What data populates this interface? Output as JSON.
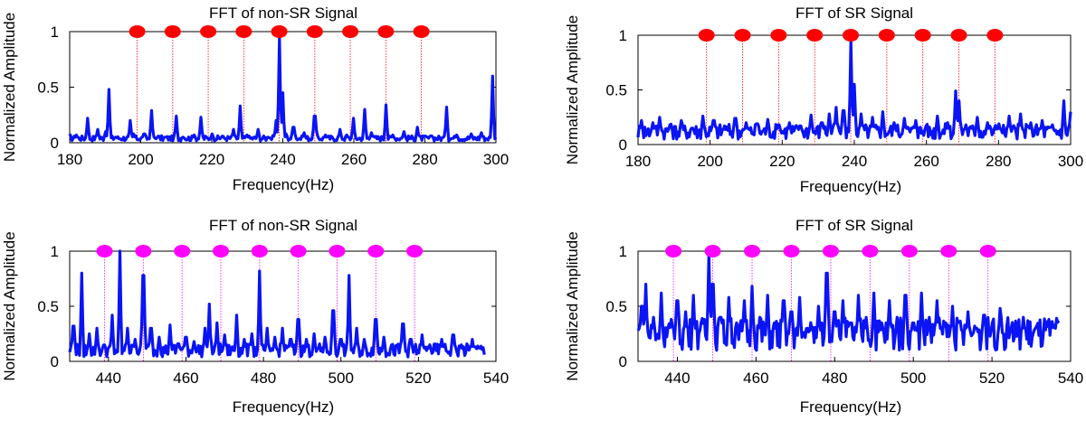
{
  "chart_data": [
    {
      "type": "line",
      "title": "FFT of non-SR Signal",
      "xlabel": "Frequency(Hz)",
      "ylabel": "Normalized Amplitude",
      "xlim": [
        180,
        300
      ],
      "ylim": [
        0,
        1
      ],
      "xticks": [
        180,
        200,
        220,
        240,
        260,
        280,
        300
      ],
      "yticks": [
        0,
        0.5,
        1
      ],
      "line_color": "#0a14f5",
      "marker_color": "#ff0000",
      "markers_x": [
        199,
        209,
        219,
        229,
        239,
        249,
        259,
        269,
        279
      ],
      "baseline": 0.04,
      "peaks": [
        [
          180,
          0.08
        ],
        [
          182,
          0.07
        ],
        [
          185,
          0.22
        ],
        [
          188,
          0.12
        ],
        [
          190,
          0.1
        ],
        [
          191,
          0.48
        ],
        [
          193,
          0.05
        ],
        [
          197,
          0.2
        ],
        [
          198,
          0.08
        ],
        [
          201,
          0.08
        ],
        [
          203,
          0.29
        ],
        [
          205,
          0.06
        ],
        [
          207,
          0.05
        ],
        [
          210,
          0.24
        ],
        [
          212,
          0.05
        ],
        [
          215,
          0.07
        ],
        [
          217,
          0.23
        ],
        [
          220,
          0.08
        ],
        [
          223,
          0.06
        ],
        [
          226,
          0.12
        ],
        [
          228,
          0.33
        ],
        [
          230,
          0.07
        ],
        [
          233,
          0.12
        ],
        [
          236,
          0.05
        ],
        [
          238,
          0.2
        ],
        [
          239,
          0.95
        ],
        [
          240,
          0.45
        ],
        [
          241,
          0.08
        ],
        [
          243,
          0.14
        ],
        [
          246,
          0.09
        ],
        [
          249,
          0.24
        ],
        [
          252,
          0.07
        ],
        [
          256,
          0.12
        ],
        [
          258,
          0.07
        ],
        [
          260,
          0.22
        ],
        [
          263,
          0.3
        ],
        [
          265,
          0.09
        ],
        [
          269,
          0.34
        ],
        [
          271,
          0.07
        ],
        [
          274,
          0.1
        ],
        [
          278,
          0.14
        ],
        [
          282,
          0.06
        ],
        [
          286,
          0.32
        ],
        [
          289,
          0.07
        ],
        [
          293,
          0.08
        ],
        [
          296,
          0.09
        ],
        [
          299,
          0.6
        ]
      ]
    },
    {
      "type": "line",
      "title": "FFT of SR Signal",
      "xlabel": "Frequency(Hz)",
      "ylabel": "Normalized Amplitude",
      "xlim": [
        180,
        300
      ],
      "ylim": [
        0,
        1
      ],
      "xticks": [
        180,
        200,
        220,
        240,
        260,
        280,
        300
      ],
      "yticks": [
        0,
        0.5,
        1
      ],
      "line_color": "#0a14f5",
      "marker_color": "#ff0000",
      "markers_x": [
        199,
        209,
        219,
        229,
        239,
        249,
        259,
        269,
        279
      ],
      "baseline": 0.12,
      "peaks": [
        [
          181,
          0.22
        ],
        [
          184,
          0.2
        ],
        [
          186,
          0.25
        ],
        [
          189,
          0.18
        ],
        [
          192,
          0.22
        ],
        [
          195,
          0.15
        ],
        [
          198,
          0.26
        ],
        [
          201,
          0.22
        ],
        [
          204,
          0.17
        ],
        [
          207,
          0.24
        ],
        [
          210,
          0.2
        ],
        [
          213,
          0.19
        ],
        [
          216,
          0.23
        ],
        [
          219,
          0.18
        ],
        [
          222,
          0.2
        ],
        [
          225,
          0.17
        ],
        [
          228,
          0.27
        ],
        [
          231,
          0.2
        ],
        [
          233,
          0.28
        ],
        [
          235,
          0.34
        ],
        [
          237,
          0.31
        ],
        [
          239,
          0.95
        ],
        [
          240,
          0.55
        ],
        [
          242,
          0.28
        ],
        [
          245,
          0.25
        ],
        [
          248,
          0.3
        ],
        [
          251,
          0.2
        ],
        [
          254,
          0.24
        ],
        [
          257,
          0.22
        ],
        [
          260,
          0.17
        ],
        [
          263,
          0.26
        ],
        [
          266,
          0.2
        ],
        [
          268,
          0.49
        ],
        [
          269,
          0.4
        ],
        [
          271,
          0.18
        ],
        [
          274,
          0.25
        ],
        [
          277,
          0.2
        ],
        [
          280,
          0.19
        ],
        [
          283,
          0.26
        ],
        [
          286,
          0.28
        ],
        [
          289,
          0.2
        ],
        [
          292,
          0.22
        ],
        [
          295,
          0.18
        ],
        [
          298,
          0.4
        ],
        [
          300,
          0.3
        ]
      ]
    },
    {
      "type": "line",
      "title": "FFT of non-SR Signal",
      "xlabel": "Frequency(Hz)",
      "ylabel": "Normalized Amplitude",
      "xlim": [
        430,
        540
      ],
      "ylim": [
        0,
        1
      ],
      "xticks": [
        440,
        460,
        480,
        500,
        520,
        540
      ],
      "yticks": [
        0,
        0.5,
        1
      ],
      "line_color": "#0a14f5",
      "marker_color": "#ff00ff",
      "markers_x": [
        439,
        449,
        459,
        469,
        479,
        489,
        499,
        509,
        519
      ],
      "baseline": 0.1,
      "end_x": 537,
      "peaks": [
        [
          431,
          0.32
        ],
        [
          433,
          0.8
        ],
        [
          435,
          0.25
        ],
        [
          437,
          0.3
        ],
        [
          439,
          0.15
        ],
        [
          441,
          0.42
        ],
        [
          443,
          1.0
        ],
        [
          445,
          0.3
        ],
        [
          447,
          0.2
        ],
        [
          449,
          0.78
        ],
        [
          451,
          0.3
        ],
        [
          453,
          0.22
        ],
        [
          456,
          0.33
        ],
        [
          458,
          0.16
        ],
        [
          460,
          0.22
        ],
        [
          462,
          0.18
        ],
        [
          465,
          0.3
        ],
        [
          466,
          0.52
        ],
        [
          468,
          0.35
        ],
        [
          470,
          0.24
        ],
        [
          473,
          0.42
        ],
        [
          475,
          0.2
        ],
        [
          477,
          0.25
        ],
        [
          479,
          0.82
        ],
        [
          481,
          0.3
        ],
        [
          483,
          0.22
        ],
        [
          485,
          0.3
        ],
        [
          487,
          0.2
        ],
        [
          489,
          0.38
        ],
        [
          491,
          0.2
        ],
        [
          493,
          0.25
        ],
        [
          496,
          0.22
        ],
        [
          498,
          0.46
        ],
        [
          500,
          0.2
        ],
        [
          502,
          0.78
        ],
        [
          504,
          0.3
        ],
        [
          506,
          0.2
        ],
        [
          509,
          0.38
        ],
        [
          511,
          0.22
        ],
        [
          513,
          0.15
        ],
        [
          516,
          0.34
        ],
        [
          518,
          0.2
        ],
        [
          521,
          0.24
        ],
        [
          523,
          0.15
        ],
        [
          526,
          0.2
        ],
        [
          529,
          0.24
        ],
        [
          531,
          0.15
        ],
        [
          534,
          0.2
        ],
        [
          536,
          0.12
        ]
      ]
    },
    {
      "type": "line",
      "title": "FFT of SR Signal",
      "xlabel": "Frequency(Hz)",
      "ylabel": "Normalized Amplitude",
      "xlim": [
        430,
        540
      ],
      "ylim": [
        0,
        1
      ],
      "xticks": [
        440,
        460,
        480,
        500,
        520,
        540
      ],
      "yticks": [
        0,
        0.5,
        1
      ],
      "line_color": "#0a14f5",
      "marker_color": "#ff00ff",
      "markers_x": [
        439,
        449,
        459,
        469,
        479,
        489,
        499,
        509,
        519
      ],
      "baseline": 0.25,
      "end_x": 537,
      "peaks": [
        [
          431,
          0.5
        ],
        [
          432,
          0.7
        ],
        [
          434,
          0.4
        ],
        [
          436,
          0.62
        ],
        [
          438,
          0.3
        ],
        [
          440,
          0.55
        ],
        [
          442,
          0.45
        ],
        [
          444,
          0.6
        ],
        [
          446,
          0.35
        ],
        [
          448,
          0.98
        ],
        [
          449,
          0.7
        ],
        [
          451,
          0.4
        ],
        [
          453,
          0.58
        ],
        [
          455,
          0.35
        ],
        [
          457,
          0.55
        ],
        [
          459,
          0.68
        ],
        [
          461,
          0.4
        ],
        [
          463,
          0.6
        ],
        [
          465,
          0.3
        ],
        [
          467,
          0.55
        ],
        [
          469,
          0.45
        ],
        [
          471,
          0.58
        ],
        [
          473,
          0.3
        ],
        [
          476,
          0.5
        ],
        [
          478,
          0.8
        ],
        [
          480,
          0.45
        ],
        [
          482,
          0.55
        ],
        [
          484,
          0.35
        ],
        [
          486,
          0.6
        ],
        [
          488,
          0.4
        ],
        [
          490,
          0.62
        ],
        [
          492,
          0.35
        ],
        [
          494,
          0.55
        ],
        [
          496,
          0.4
        ],
        [
          498,
          0.6
        ],
        [
          500,
          0.35
        ],
        [
          502,
          0.62
        ],
        [
          504,
          0.4
        ],
        [
          506,
          0.55
        ],
        [
          508,
          0.32
        ],
        [
          510,
          0.5
        ],
        [
          512,
          0.35
        ],
        [
          514,
          0.45
        ],
        [
          516,
          0.3
        ],
        [
          518,
          0.42
        ],
        [
          520,
          0.35
        ],
        [
          522,
          0.48
        ],
        [
          525,
          0.3
        ],
        [
          528,
          0.4
        ],
        [
          531,
          0.28
        ],
        [
          534,
          0.35
        ],
        [
          536,
          0.3
        ]
      ]
    }
  ]
}
